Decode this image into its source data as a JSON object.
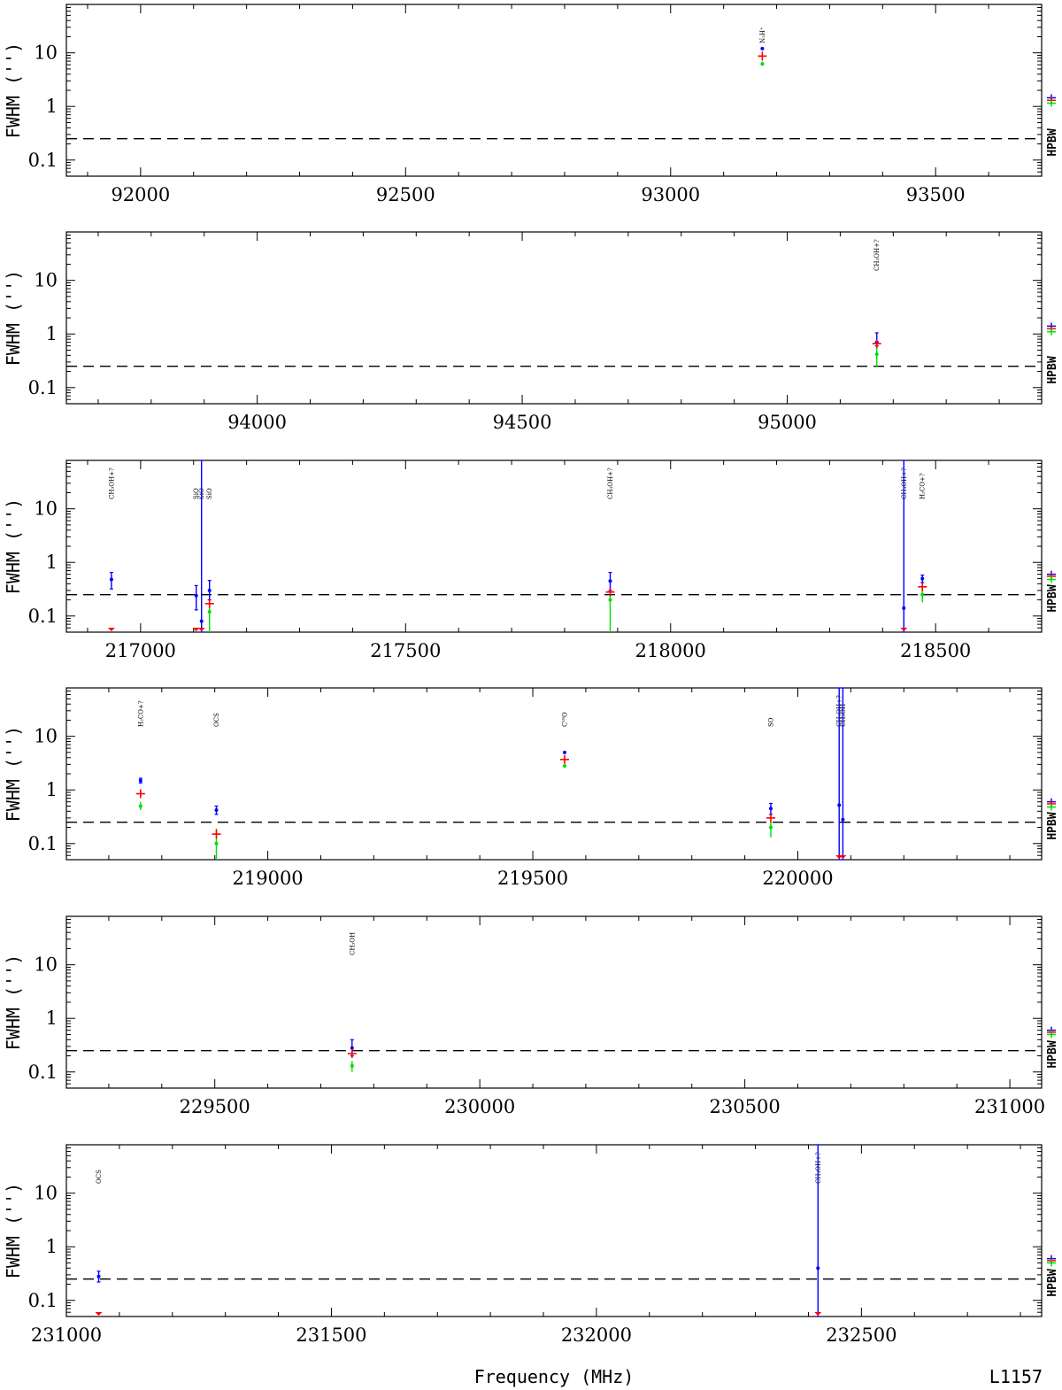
{
  "figure": {
    "xlabel": "Frequency (MHz)",
    "source": "L1157",
    "hpbw_label": "HPBW",
    "colors": {
      "blue": "#0000ff",
      "red": "#ff0000",
      "green": "#00dd00",
      "dash": "#000000"
    }
  },
  "chart_data": [
    {
      "type": "scatter",
      "ylabel": "FWHM ('')",
      "yscale": "log",
      "ylim": [
        0.05,
        80
      ],
      "xlim": [
        91860,
        93700
      ],
      "xticks": [
        92000,
        92500,
        93000,
        93500
      ],
      "yticks": [
        0.1,
        1,
        10
      ],
      "hpbw_level": 0.25,
      "hpbw_markers": {
        "blue": 1.45,
        "red": 1.3,
        "green": 1.15
      },
      "lines": [
        {
          "label": "N2H+",
          "x": 93173,
          "blue": {
            "y": 12
          },
          "red": {
            "y": 8.7
          },
          "green": {
            "y": 6.2,
            "lo": 5.8,
            "hi": 6.9
          }
        }
      ]
    },
    {
      "type": "scatter",
      "ylabel": "FWHM ('')",
      "yscale": "log",
      "ylim": [
        0.05,
        80
      ],
      "xlim": [
        93640,
        95480
      ],
      "xticks": [
        94000,
        94500,
        95000
      ],
      "yticks": [
        0.1,
        1,
        10
      ],
      "hpbw_level": 0.25,
      "hpbw_markers": {
        "blue": 1.4,
        "red": 1.25,
        "green": 1.1
      },
      "lines": [
        {
          "label": "CH3OH+?",
          "x": 95169,
          "blue": {
            "y": 0.7,
            "lo": 0.6,
            "hi": 1.05
          },
          "red": {
            "y": 0.66
          },
          "green": {
            "y": 0.42,
            "lo": 0.24,
            "hi": 0.6
          }
        }
      ]
    },
    {
      "type": "scatter",
      "ylabel": "FWHM ('')",
      "yscale": "log",
      "ylim": [
        0.05,
        80
      ],
      "xlim": [
        216860,
        218700
      ],
      "xticks": [
        217000,
        217500,
        218000,
        218500
      ],
      "yticks": [
        0.1,
        1,
        10
      ],
      "hpbw_level": 0.25,
      "hpbw_markers": {
        "blue": 0.6,
        "red": 0.55,
        "green": 0.48
      },
      "lines": [
        {
          "label": "CH3OH+?",
          "x": 216945,
          "blue": {
            "y": 0.48,
            "lo": 0.32,
            "hi": 0.65
          },
          "red": {
            "y": 0.05
          }
        },
        {
          "label": "SiO",
          "x": 217105,
          "blue": {
            "y": 0.24,
            "lo": 0.13,
            "hi": 0.37
          },
          "red": {
            "y": 0.05
          }
        },
        {
          "label": "SiO",
          "x": 217115,
          "blue": {
            "y": 0.08,
            "lo": 0.05,
            "hi": 80
          },
          "red": {
            "y": 0.05
          }
        },
        {
          "label": "SiO",
          "x": 217130,
          "blue": {
            "y": 0.3,
            "lo": 0.2,
            "hi": 0.46
          },
          "red": {
            "y": 0.17
          },
          "green": {
            "y": 0.12,
            "lo": 0.05,
            "hi": 0.19
          }
        },
        {
          "label": "CH3OH+?",
          "x": 217886,
          "blue": {
            "y": 0.45,
            "lo": 0.3,
            "hi": 0.65
          },
          "red": {
            "y": 0.28
          },
          "green": {
            "y": 0.2,
            "lo": 0.05,
            "hi": 0.27
          }
        },
        {
          "label": "CH3OH+?",
          "x": 218440,
          "blue": {
            "y": 0.14,
            "lo": 0.05,
            "hi": 80
          },
          "red": {
            "y": 0.05
          }
        },
        {
          "label": "H2CO+?",
          "x": 218475,
          "blue": {
            "y": 0.5,
            "lo": 0.42,
            "hi": 0.58
          },
          "red": {
            "y": 0.35
          },
          "green": {
            "y": 0.25,
            "lo": 0.18,
            "hi": 0.33
          }
        }
      ]
    },
    {
      "type": "scatter",
      "ylabel": "FWHM ('')",
      "yscale": "log",
      "ylim": [
        0.05,
        80
      ],
      "xlim": [
        218620,
        220460
      ],
      "xticks": [
        219000,
        219500,
        220000
      ],
      "yticks": [
        0.1,
        1,
        10
      ],
      "hpbw_level": 0.25,
      "hpbw_markers": {
        "blue": 0.6,
        "red": 0.55,
        "green": 0.48
      },
      "lines": [
        {
          "label": "H2CO+?",
          "x": 218760,
          "blue": {
            "y": 1.5,
            "lo": 1.35,
            "hi": 1.65
          },
          "red": {
            "y": 0.85
          },
          "green": {
            "y": 0.5,
            "lo": 0.42,
            "hi": 0.6
          }
        },
        {
          "label": "OCS",
          "x": 218903,
          "blue": {
            "y": 0.42,
            "lo": 0.35,
            "hi": 0.5
          },
          "red": {
            "y": 0.15
          },
          "green": {
            "y": 0.1,
            "lo": 0.05,
            "hi": 0.19
          }
        },
        {
          "label": "C18O",
          "x": 219560,
          "blue": {
            "y": 5.0
          },
          "red": {
            "y": 3.7
          },
          "green": {
            "y": 2.8
          }
        },
        {
          "label": "SO",
          "x": 219949,
          "blue": {
            "y": 0.45,
            "lo": 0.35,
            "hi": 0.56
          },
          "red": {
            "y": 0.3
          },
          "green": {
            "y": 0.2,
            "lo": 0.13,
            "hi": 0.26
          }
        },
        {
          "label": "CH3OH+?",
          "x": 220078,
          "blue": {
            "y": 0.52,
            "lo": 0.05,
            "hi": 80
          },
          "red": {
            "y": 0.05
          }
        },
        {
          "label": "CH3OH",
          "x": 220085,
          "blue": {
            "y": 0.28,
            "lo": 0.05,
            "hi": 80
          },
          "red": {
            "y": 0.05
          }
        }
      ]
    },
    {
      "type": "scatter",
      "ylabel": "FWHM ('')",
      "yscale": "log",
      "ylim": [
        0.05,
        80
      ],
      "xlim": [
        229220,
        231060
      ],
      "xticks": [
        229500,
        230000,
        230500,
        231000
      ],
      "yticks": [
        0.1,
        1,
        10
      ],
      "hpbw_level": 0.25,
      "hpbw_markers": {
        "blue": 0.6,
        "red": 0.55,
        "green": 0.5
      },
      "lines": [
        {
          "label": "CH3OH",
          "x": 229759,
          "blue": {
            "y": 0.28,
            "lo": 0.2,
            "hi": 0.4
          },
          "red": {
            "y": 0.22
          },
          "green": {
            "y": 0.13,
            "lo": 0.1,
            "hi": 0.16
          }
        }
      ]
    },
    {
      "type": "scatter",
      "ylabel": "FWHM ('')",
      "yscale": "log",
      "ylim": [
        0.05,
        80
      ],
      "xlim": [
        231000,
        232840
      ],
      "xticks": [
        231000,
        231500,
        232000,
        232500
      ],
      "yticks": [
        0.1,
        1,
        10
      ],
      "hpbw_level": 0.25,
      "hpbw_markers": {
        "blue": 0.6,
        "red": 0.55,
        "green": 0.5
      },
      "lines": [
        {
          "label": "OCS",
          "x": 231061,
          "blue": {
            "y": 0.28,
            "lo": 0.22,
            "hi": 0.35
          },
          "red": {
            "y": 0.05
          }
        },
        {
          "label": "CH3OH+?",
          "x": 232418,
          "blue": {
            "y": 0.4,
            "lo": 0.05,
            "hi": 80
          },
          "red": {
            "y": 0.05
          }
        }
      ]
    }
  ]
}
